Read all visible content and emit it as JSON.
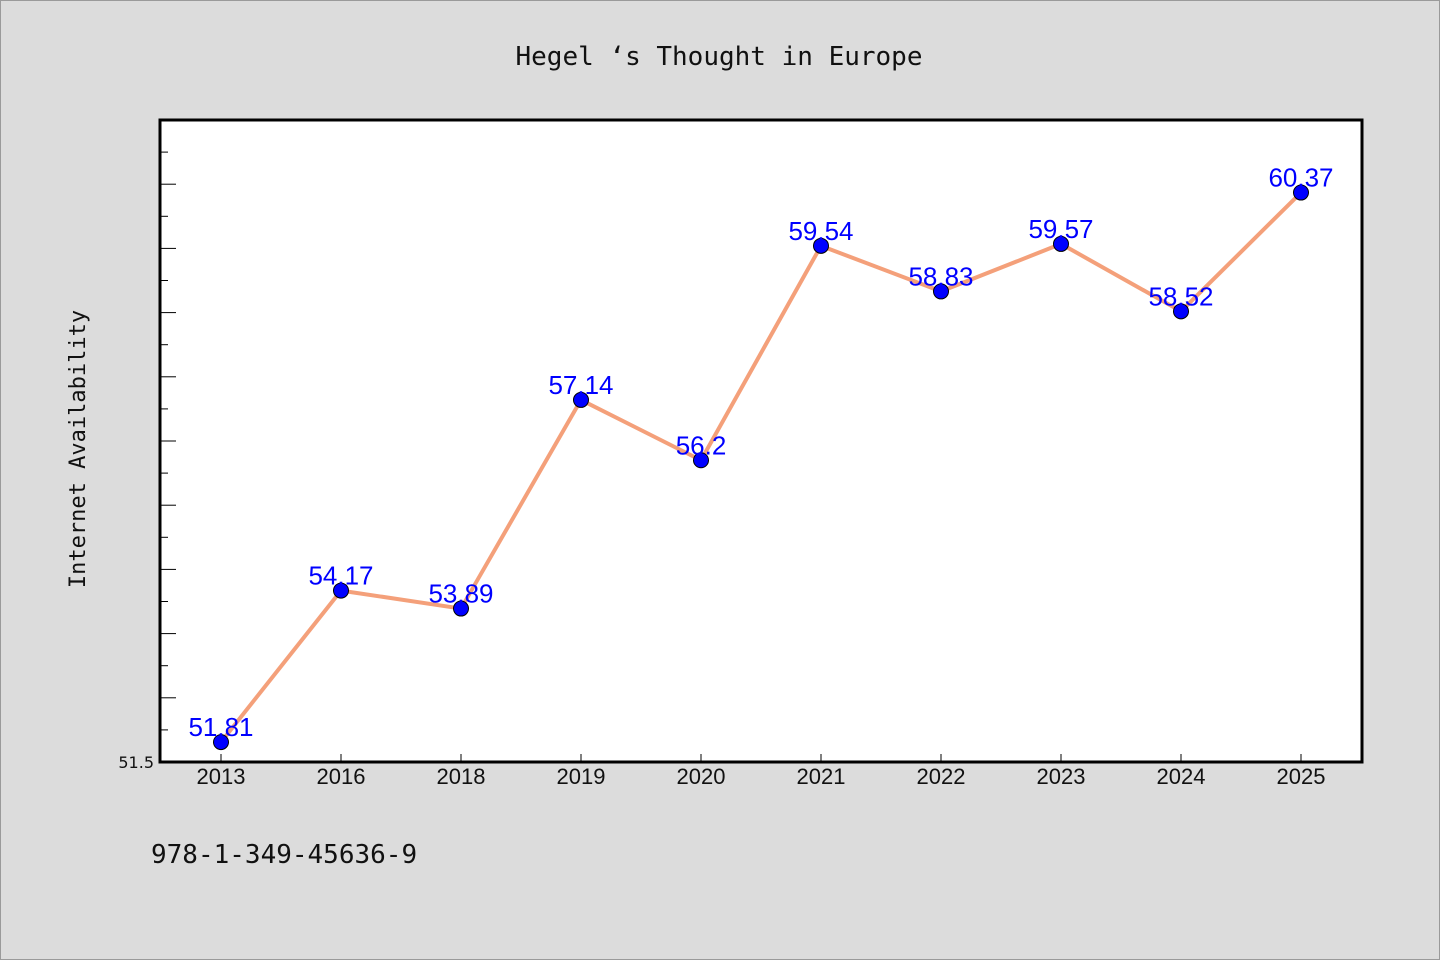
{
  "chart_data": {
    "type": "line",
    "title": "Hegel ‘s Thought in Europe",
    "xlabel": "",
    "ylabel": "Internet Availability",
    "categories": [
      "2013",
      "2016",
      "2018",
      "2019",
      "2020",
      "2021",
      "2022",
      "2023",
      "2024",
      "2025"
    ],
    "series": [
      {
        "values": [
          51.81,
          54.17,
          53.89,
          57.14,
          56.2,
          59.54,
          58.83,
          59.57,
          58.52,
          60.37
        ],
        "data_labels": [
          "51.81",
          "54.17",
          "53.89",
          "57.14",
          "56.2",
          "59.54",
          "58.83",
          "59.57",
          "58.52",
          "60.37"
        ]
      }
    ],
    "y_tick_labels": [
      "51.5"
    ],
    "ylim": [
      51.5,
      61.5
    ],
    "grid": false,
    "line_color": "#f4a07a",
    "marker_color": "#0000ff",
    "label_color": "#0000ff"
  },
  "footer": {
    "caption": "978-1-349-45636-9"
  }
}
